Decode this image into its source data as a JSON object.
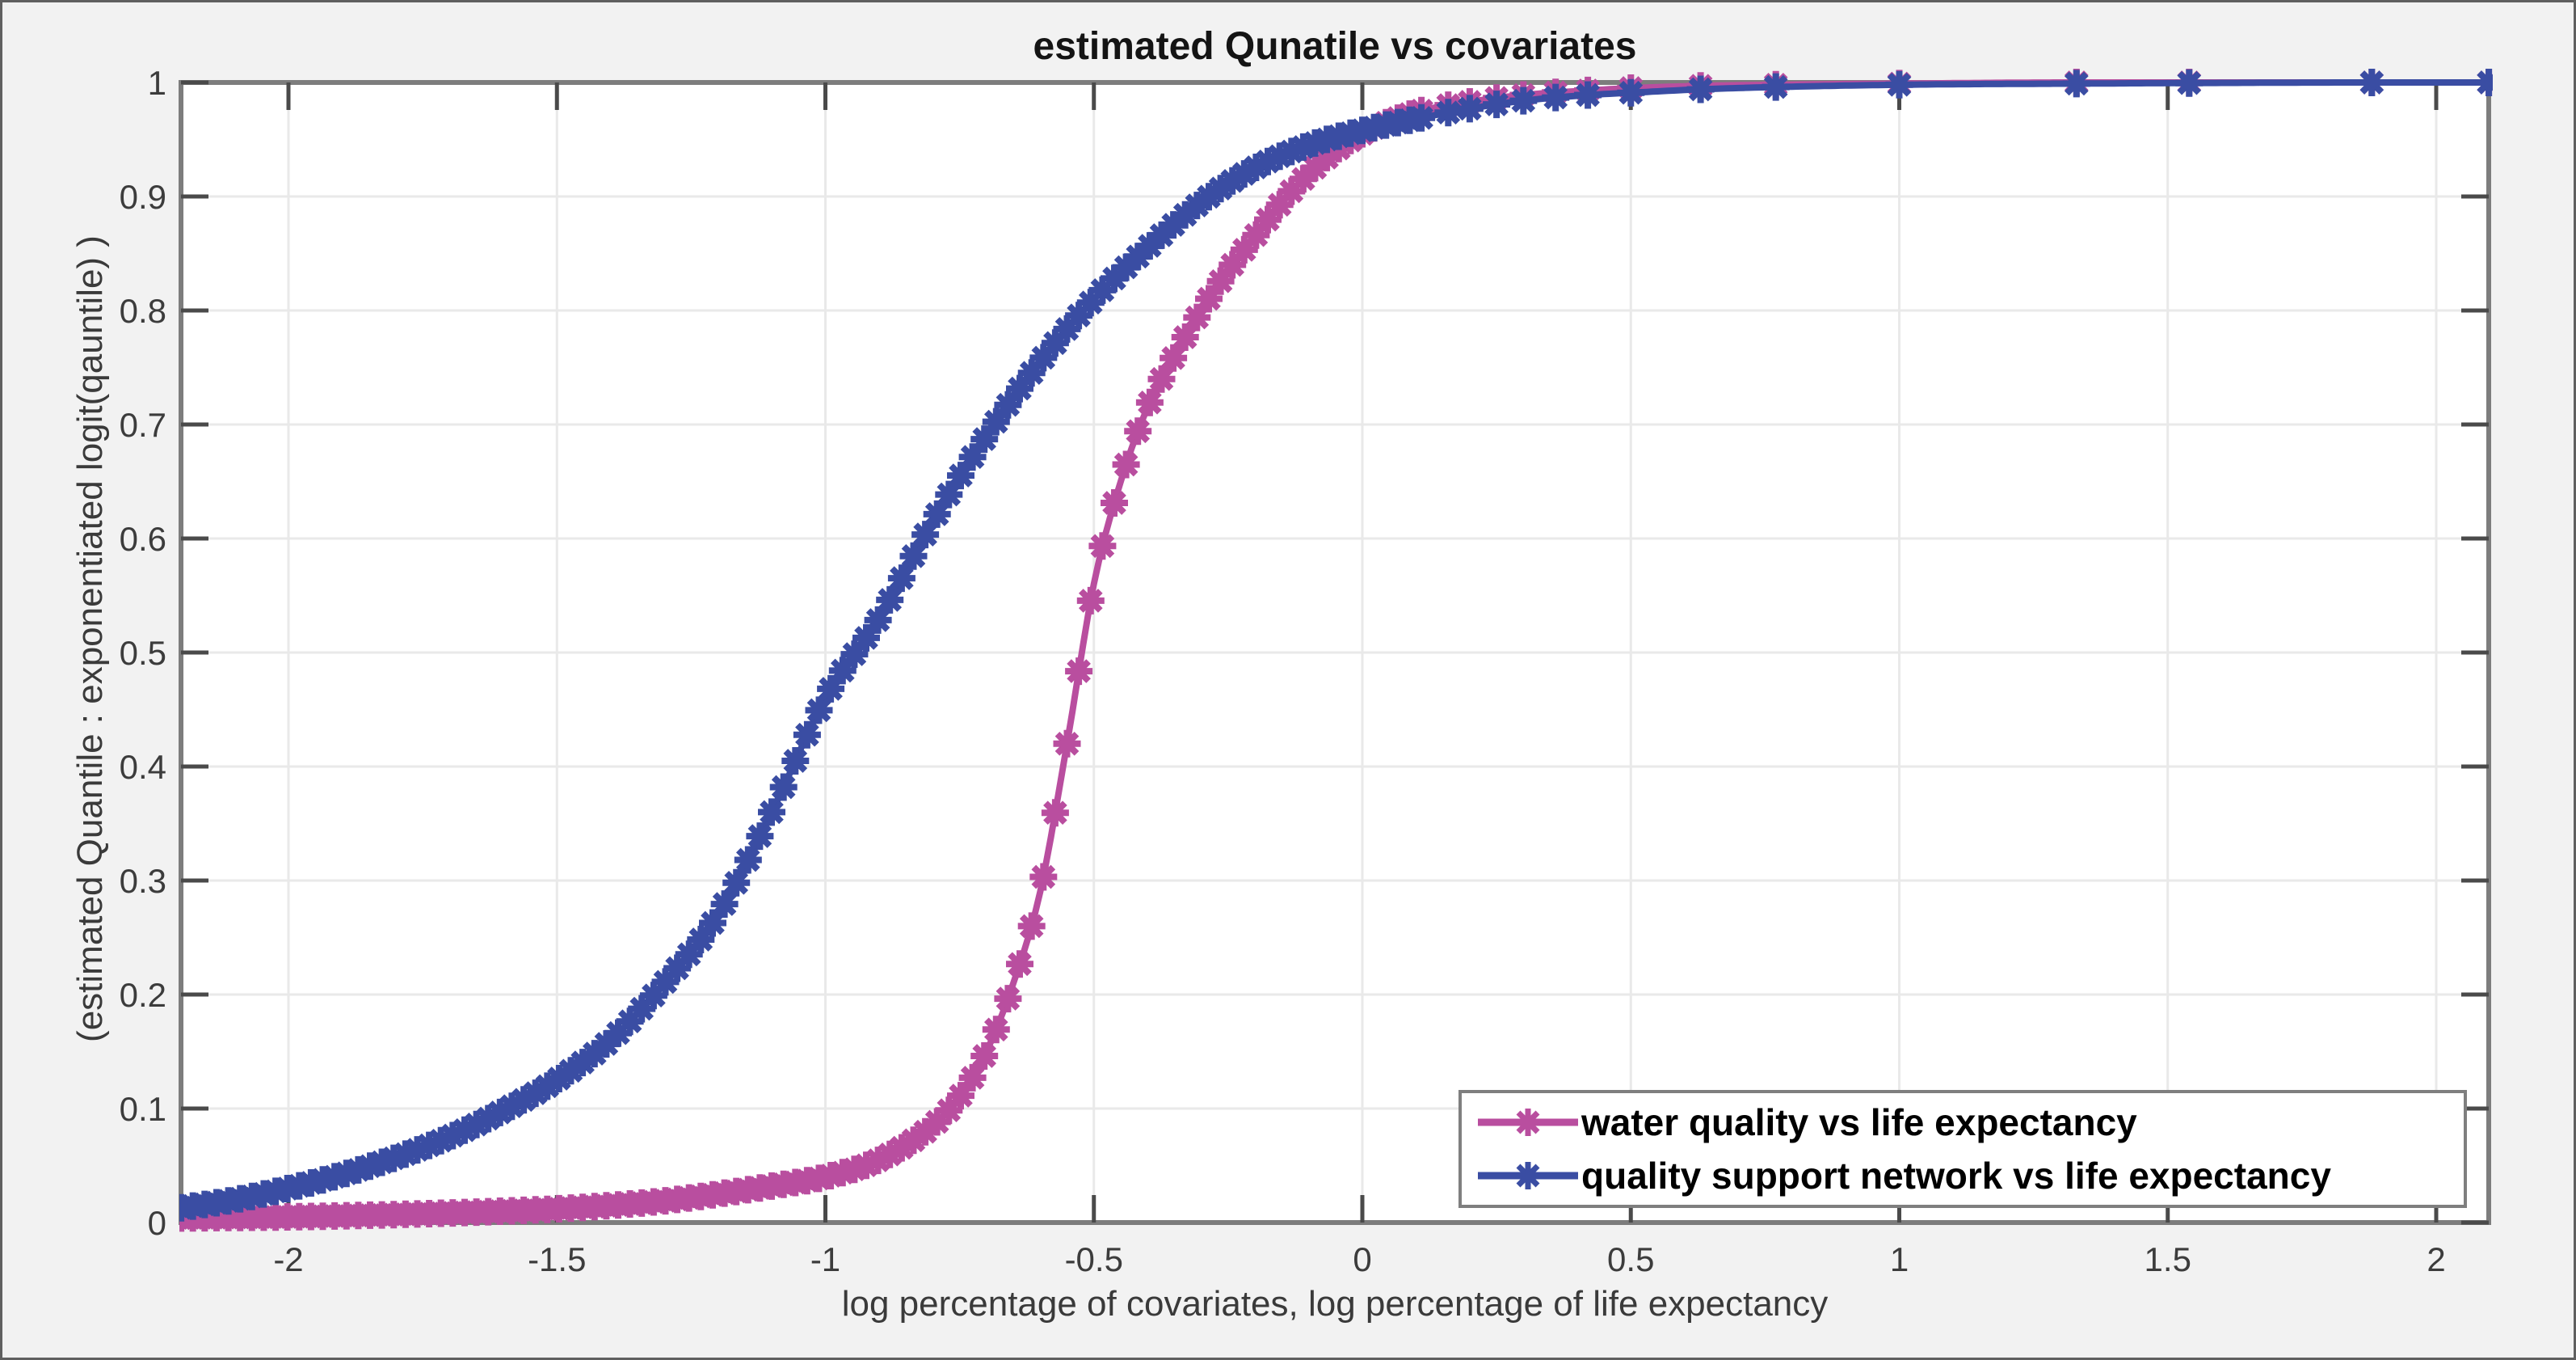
{
  "figure": {
    "background": "#f2f2f2",
    "plot_background": "#ffffff",
    "frame_color": "#606060"
  },
  "chart_data": {
    "type": "line",
    "title": "estimated Qunatile vs covariates",
    "xlabel": "log percentage of covariates, log percentage of life expectancy",
    "ylabel": "(estimated Quantile : exponentiated logit(qauntile) )",
    "xlim": [
      -2.2,
      2.1
    ],
    "ylim": [
      0,
      1
    ],
    "grid": true,
    "legend_position": "bottom-right",
    "marker": "asterisk",
    "axis_color": "#7d7d7d",
    "grid_color": "#e9e9e9",
    "tick_color": "#4a4a4a",
    "tick_text_color": "#3c3c3c",
    "x_ticks": [
      -2,
      -1.5,
      -1,
      -0.5,
      0,
      0.5,
      1,
      1.5,
      2
    ],
    "x_tick_labels": [
      "-2",
      "-1.5",
      "-1",
      "-0.5",
      "0",
      "0.5",
      "1",
      "1.5",
      "2"
    ],
    "y_ticks": [
      0,
      0.1,
      0.2,
      0.3,
      0.4,
      0.5,
      0.6,
      0.7,
      0.8,
      0.9,
      1
    ],
    "y_tick_labels": [
      "0",
      "0.1",
      "0.2",
      "0.3",
      "0.4",
      "0.5",
      "0.6",
      "0.7",
      "0.8",
      "0.9",
      "1"
    ],
    "series": [
      {
        "name": "water quality vs life expectancy",
        "color": "#b94e9f",
        "points": [
          [
            -2.2,
            0.004
          ],
          [
            -2.0,
            0.005
          ],
          [
            -1.8,
            0.007
          ],
          [
            -1.6,
            0.01
          ],
          [
            -1.5,
            0.012
          ],
          [
            -1.4,
            0.015
          ],
          [
            -1.3,
            0.019
          ],
          [
            -1.2,
            0.025
          ],
          [
            -1.1,
            0.032
          ],
          [
            -1.0,
            0.04
          ],
          [
            -0.9,
            0.055
          ],
          [
            -0.8,
            0.085
          ],
          [
            -0.75,
            0.11
          ],
          [
            -0.7,
            0.15
          ],
          [
            -0.65,
            0.21
          ],
          [
            -0.6,
            0.29
          ],
          [
            -0.55,
            0.42
          ],
          [
            -0.5,
            0.56
          ],
          [
            -0.45,
            0.65
          ],
          [
            -0.4,
            0.715
          ],
          [
            -0.35,
            0.76
          ],
          [
            -0.3,
            0.8
          ],
          [
            -0.25,
            0.835
          ],
          [
            -0.2,
            0.865
          ],
          [
            -0.15,
            0.895
          ],
          [
            -0.1,
            0.92
          ],
          [
            -0.05,
            0.94
          ],
          [
            0.0,
            0.955
          ],
          [
            0.1,
            0.974
          ],
          [
            0.2,
            0.983
          ],
          [
            0.3,
            0.989
          ],
          [
            0.42,
            0.993
          ],
          [
            0.5,
            0.995
          ],
          [
            0.63,
            0.997
          ],
          [
            0.77,
            0.998
          ],
          [
            1.0,
            0.999
          ],
          [
            1.33,
            1.0
          ],
          [
            1.54,
            1.0
          ],
          [
            1.88,
            1.0
          ],
          [
            2.098,
            1.0
          ]
        ]
      },
      {
        "name": "quality support network vs life expectancy",
        "color": "#3a4da3",
        "points": [
          [
            -2.2,
            0.013
          ],
          [
            -2.1,
            0.02
          ],
          [
            -2.0,
            0.03
          ],
          [
            -1.9,
            0.042
          ],
          [
            -1.8,
            0.057
          ],
          [
            -1.7,
            0.075
          ],
          [
            -1.6,
            0.098
          ],
          [
            -1.5,
            0.125
          ],
          [
            -1.4,
            0.16
          ],
          [
            -1.3,
            0.21
          ],
          [
            -1.2,
            0.27
          ],
          [
            -1.1,
            0.36
          ],
          [
            -1.0,
            0.46
          ],
          [
            -0.9,
            0.53
          ],
          [
            -0.8,
            0.615
          ],
          [
            -0.7,
            0.69
          ],
          [
            -0.6,
            0.755
          ],
          [
            -0.5,
            0.81
          ],
          [
            -0.4,
            0.855
          ],
          [
            -0.3,
            0.895
          ],
          [
            -0.2,
            0.925
          ],
          [
            -0.1,
            0.945
          ],
          [
            0.0,
            0.958
          ],
          [
            0.1,
            0.968
          ],
          [
            0.2,
            0.977
          ],
          [
            0.3,
            0.984
          ],
          [
            0.42,
            0.989
          ],
          [
            0.5,
            0.991
          ],
          [
            0.63,
            0.994
          ],
          [
            0.77,
            0.996
          ],
          [
            1.0,
            0.998
          ],
          [
            1.33,
            0.999
          ],
          [
            1.54,
            0.9995
          ],
          [
            1.88,
            1.0
          ],
          [
            2.098,
            1.0
          ]
        ]
      }
    ],
    "marker_sampling": {
      "dense_from": -2.2,
      "dense_to": 0.13,
      "dense_step": 0.022,
      "sparse_x": [
        0.16,
        0.2,
        0.25,
        0.3,
        0.36,
        0.42,
        0.5,
        0.63,
        0.77,
        1.0,
        1.33,
        1.54,
        1.88,
        2.098
      ]
    }
  }
}
